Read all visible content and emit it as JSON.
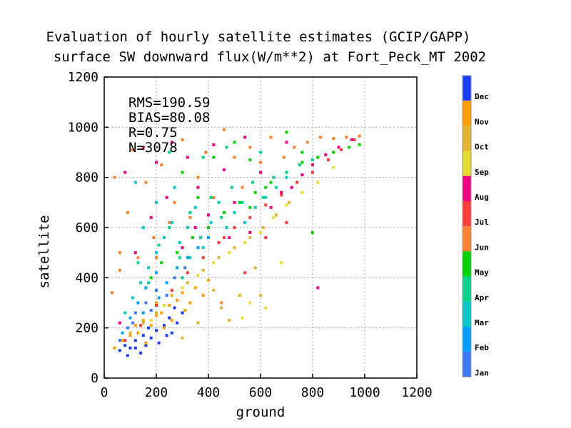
{
  "chart_data": {
    "type": "scatter",
    "title_lines": [
      "Evaluation of hourly satellite estimates (GCIP/GAPP)",
      "surface SW downward flux(W/m**2) at Fort_Peck_MT 2002"
    ],
    "xlabel": "ground",
    "ylabel": "satellite",
    "xlim": [
      0,
      1200
    ],
    "ylim": [
      0,
      1200
    ],
    "xticks": [
      0,
      200,
      400,
      600,
      800,
      1000,
      1200
    ],
    "yticks": [
      0,
      200,
      400,
      600,
      800,
      1000,
      1200
    ],
    "grid": true,
    "stats": [
      "RMS=190.59",
      "BIAS=80.08",
      "R=0.75",
      "N=3078"
    ],
    "colorbar": {
      "placement": "right",
      "labels": [
        "Dec",
        "Nov",
        "Oct",
        "Sep",
        "Aug",
        "Jul",
        "Jun",
        "May",
        "Apr",
        "Mar",
        "Feb",
        "Jan"
      ],
      "colors": [
        "#1c3cff",
        "#ffa000",
        "#e1b432",
        "#e6dc32",
        "#f00082",
        "#ff3c3c",
        "#ff8232",
        "#00d200",
        "#00d28c",
        "#00c8c8",
        "#00a0ff",
        "#3c78f0"
      ]
    },
    "series": [
      {
        "name": "Dec",
        "color": "#1c3cff",
        "points": [
          [
            60,
            110
          ],
          [
            80,
            130
          ],
          [
            100,
            120
          ],
          [
            120,
            150
          ],
          [
            140,
            100
          ],
          [
            150,
            170
          ],
          [
            160,
            130
          ],
          [
            180,
            160
          ],
          [
            200,
            190
          ],
          [
            210,
            140
          ],
          [
            230,
            210
          ],
          [
            250,
            240
          ],
          [
            260,
            180
          ],
          [
            280,
            220
          ],
          [
            300,
            260
          ],
          [
            90,
            90
          ],
          [
            120,
            120
          ],
          [
            170,
            200
          ],
          [
            240,
            170
          ],
          [
            270,
            280
          ]
        ]
      },
      {
        "name": "Nov",
        "color": "#ffa000",
        "points": [
          [
            40,
            120
          ],
          [
            70,
            150
          ],
          [
            100,
            170
          ],
          [
            130,
            180
          ],
          [
            150,
            230
          ],
          [
            180,
            210
          ],
          [
            200,
            250
          ],
          [
            220,
            260
          ],
          [
            250,
            290
          ],
          [
            280,
            310
          ],
          [
            300,
            340
          ],
          [
            330,
            300
          ],
          [
            350,
            360
          ],
          [
            380,
            330
          ],
          [
            400,
            390
          ],
          [
            160,
            140
          ],
          [
            230,
            200
          ],
          [
            260,
            230
          ],
          [
            310,
            270
          ],
          [
            200,
            300
          ],
          [
            120,
            210
          ]
        ]
      },
      {
        "name": "Oct",
        "color": "#e1b432",
        "points": [
          [
            100,
            180
          ],
          [
            150,
            220
          ],
          [
            200,
            260
          ],
          [
            260,
            330
          ],
          [
            320,
            380
          ],
          [
            380,
            430
          ],
          [
            440,
            480
          ],
          [
            500,
            520
          ],
          [
            560,
            560
          ],
          [
            610,
            600
          ],
          [
            660,
            650
          ],
          [
            710,
            700
          ],
          [
            300,
            160
          ],
          [
            450,
            280
          ],
          [
            520,
            330
          ],
          [
            600,
            330
          ],
          [
            360,
            220
          ],
          [
            580,
            440
          ],
          [
            420,
            350
          ],
          [
            480,
            230
          ]
        ]
      },
      {
        "name": "Sep",
        "color": "#e6dc32",
        "points": [
          [
            180,
            230
          ],
          [
            230,
            290
          ],
          [
            300,
            360
          ],
          [
            360,
            410
          ],
          [
            420,
            460
          ],
          [
            480,
            500
          ],
          [
            540,
            540
          ],
          [
            600,
            580
          ],
          [
            650,
            640
          ],
          [
            700,
            690
          ],
          [
            760,
            740
          ],
          [
            820,
            780
          ],
          [
            880,
            840
          ],
          [
            530,
            240
          ],
          [
            620,
            280
          ],
          [
            680,
            460
          ],
          [
            560,
            300
          ]
        ]
      },
      {
        "name": "Aug",
        "color": "#f00082",
        "points": [
          [
            60,
            220
          ],
          [
            80,
            820
          ],
          [
            120,
            500
          ],
          [
            150,
            920
          ],
          [
            180,
            640
          ],
          [
            200,
            860
          ],
          [
            240,
            720
          ],
          [
            260,
            940
          ],
          [
            300,
            520
          ],
          [
            320,
            880
          ],
          [
            360,
            760
          ],
          [
            400,
            650
          ],
          [
            420,
            930
          ],
          [
            460,
            830
          ],
          [
            500,
            700
          ],
          [
            540,
            960
          ],
          [
            560,
            580
          ],
          [
            600,
            820
          ],
          [
            640,
            680
          ],
          [
            680,
            740
          ],
          [
            720,
            760
          ],
          [
            760,
            810
          ],
          [
            800,
            850
          ],
          [
            850,
            890
          ],
          [
            900,
            920
          ],
          [
            950,
            950
          ],
          [
            480,
            560
          ],
          [
            700,
            940
          ],
          [
            820,
            360
          ],
          [
            350,
            600
          ]
        ]
      },
      {
        "name": "Jul",
        "color": "#ff3c3c",
        "points": [
          [
            80,
            150
          ],
          [
            140,
            210
          ],
          [
            200,
            290
          ],
          [
            260,
            350
          ],
          [
            320,
            420
          ],
          [
            380,
            480
          ],
          [
            440,
            540
          ],
          [
            500,
            600
          ],
          [
            560,
            640
          ],
          [
            620,
            690
          ],
          [
            680,
            730
          ],
          [
            740,
            780
          ],
          [
            800,
            820
          ],
          [
            860,
            870
          ],
          [
            910,
            910
          ],
          [
            960,
            950
          ],
          [
            460,
            560
          ],
          [
            540,
            420
          ],
          [
            620,
            560
          ],
          [
            700,
            620
          ]
        ]
      },
      {
        "name": "Jun",
        "color": "#ff8232",
        "points": [
          [
            30,
            340
          ],
          [
            40,
            800
          ],
          [
            60,
            430
          ],
          [
            90,
            660
          ],
          [
            110,
            910
          ],
          [
            130,
            480
          ],
          [
            160,
            780
          ],
          [
            190,
            560
          ],
          [
            220,
            850
          ],
          [
            250,
            620
          ],
          [
            270,
            700
          ],
          [
            300,
            950
          ],
          [
            330,
            640
          ],
          [
            360,
            800
          ],
          [
            390,
            900
          ],
          [
            420,
            720
          ],
          [
            460,
            990
          ],
          [
            500,
            880
          ],
          [
            530,
            760
          ],
          [
            560,
            920
          ],
          [
            600,
            860
          ],
          [
            640,
            960
          ],
          [
            690,
            880
          ],
          [
            730,
            920
          ],
          [
            780,
            940
          ],
          [
            830,
            960
          ],
          [
            880,
            955
          ],
          [
            930,
            960
          ],
          [
            980,
            965
          ],
          [
            60,
            500
          ],
          [
            200,
            480
          ],
          [
            450,
            300
          ]
        ]
      },
      {
        "name": "May",
        "color": "#00d200",
        "points": [
          [
            180,
            400
          ],
          [
            220,
            460
          ],
          [
            280,
            500
          ],
          [
            340,
            560
          ],
          [
            400,
            600
          ],
          [
            460,
            660
          ],
          [
            520,
            700
          ],
          [
            580,
            740
          ],
          [
            640,
            780
          ],
          [
            700,
            820
          ],
          [
            760,
            860
          ],
          [
            820,
            880
          ],
          [
            880,
            900
          ],
          [
            940,
            920
          ],
          [
            980,
            930
          ],
          [
            300,
            820
          ],
          [
            360,
            720
          ],
          [
            420,
            880
          ],
          [
            500,
            940
          ],
          [
            560,
            680
          ],
          [
            700,
            980
          ],
          [
            760,
            900
          ],
          [
            560,
            870
          ],
          [
            800,
            580
          ],
          [
            620,
            760
          ]
        ]
      },
      {
        "name": "Apr",
        "color": "#00d28c",
        "points": [
          [
            130,
            460
          ],
          [
            170,
            380
          ],
          [
            210,
            530
          ],
          [
            250,
            600
          ],
          [
            290,
            480
          ],
          [
            330,
            660
          ],
          [
            370,
            560
          ],
          [
            410,
            720
          ],
          [
            450,
            640
          ],
          [
            490,
            760
          ],
          [
            530,
            700
          ],
          [
            570,
            780
          ],
          [
            610,
            720
          ],
          [
            650,
            800
          ],
          [
            700,
            820
          ],
          [
            750,
            850
          ],
          [
            800,
            870
          ],
          [
            250,
            900
          ],
          [
            380,
            880
          ],
          [
            470,
            920
          ],
          [
            600,
            900
          ],
          [
            300,
            400
          ]
        ]
      },
      {
        "name": "Mar",
        "color": "#00c8c8",
        "points": [
          [
            80,
            260
          ],
          [
            110,
            320
          ],
          [
            140,
            380
          ],
          [
            170,
            440
          ],
          [
            200,
            500
          ],
          [
            230,
            560
          ],
          [
            260,
            620
          ],
          [
            290,
            540
          ],
          [
            320,
            600
          ],
          [
            350,
            680
          ],
          [
            380,
            520
          ],
          [
            410,
            620
          ],
          [
            440,
            700
          ],
          [
            470,
            600
          ],
          [
            500,
            660
          ],
          [
            540,
            620
          ],
          [
            580,
            680
          ],
          [
            620,
            720
          ],
          [
            660,
            760
          ],
          [
            700,
            800
          ],
          [
            120,
            780
          ],
          [
            200,
            700
          ],
          [
            150,
            600
          ],
          [
            270,
            760
          ],
          [
            330,
            480
          ],
          [
            400,
            560
          ]
        ]
      },
      {
        "name": "Feb",
        "color": "#00a0ff",
        "points": [
          [
            70,
            180
          ],
          [
            100,
            240
          ],
          [
            130,
            300
          ],
          [
            160,
            360
          ],
          [
            200,
            420
          ],
          [
            240,
            380
          ],
          [
            280,
            440
          ],
          [
            320,
            480
          ],
          [
            360,
            520
          ],
          [
            400,
            560
          ],
          [
            150,
            260
          ],
          [
            210,
            320
          ]
        ]
      },
      {
        "name": "Jan",
        "color": "#3c78f0",
        "points": [
          [
            60,
            150
          ],
          [
            90,
            200
          ],
          [
            120,
            260
          ],
          [
            160,
            300
          ],
          [
            200,
            350
          ],
          [
            240,
            330
          ],
          [
            270,
            400
          ],
          [
            310,
            440
          ],
          [
            110,
            220
          ],
          [
            180,
            270
          ]
        ]
      }
    ]
  }
}
